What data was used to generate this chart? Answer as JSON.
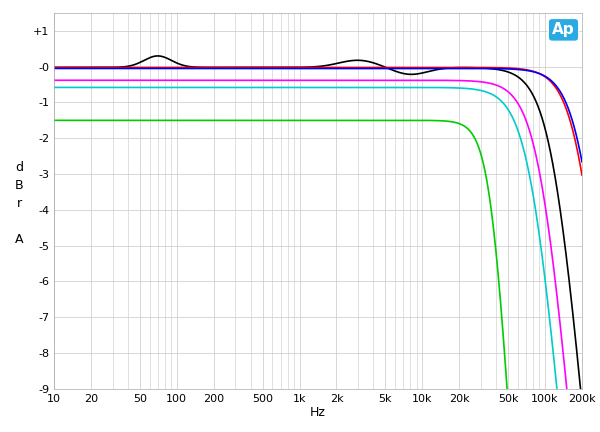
{
  "title": "",
  "xlabel": "Hz",
  "ylabel": "d\nB\nr\n\nA",
  "xlim": [
    10,
    200000
  ],
  "ylim": [
    -9,
    1.5
  ],
  "yticks": [
    1,
    0,
    -1,
    -2,
    -3,
    -4,
    -5,
    -6,
    -7,
    -8,
    -9
  ],
  "ytick_labels": [
    "+1",
    "-0",
    "-1",
    "-2",
    "-3",
    "-4",
    "-5",
    "-6",
    "-7",
    "-8",
    "-9"
  ],
  "background_color": "#ffffff",
  "grid_color": "#c8c8c8",
  "ap_logo_color": "#29aae2",
  "xtick_vals": [
    10,
    20,
    50,
    100,
    200,
    500,
    1000,
    2000,
    5000,
    10000,
    20000,
    50000,
    100000,
    200000
  ],
  "xtick_labels": [
    "10",
    "20",
    "50",
    "100",
    "200",
    "500",
    "1k",
    "2k",
    "5k",
    "10k",
    "20k",
    "50k",
    "100k",
    "200k"
  ],
  "curves": [
    {
      "color": "#000000",
      "label": "black",
      "flat_db": -0.02,
      "f_hi": 120000,
      "order_hi": 2,
      "has_ripple": true
    },
    {
      "color": "#ff0000",
      "label": "red",
      "flat_db": -0.02,
      "f_hi": 200000,
      "order_hi": 2,
      "has_ripple": false
    },
    {
      "color": "#0000ff",
      "label": "blue",
      "flat_db": -0.05,
      "f_hi": 210000,
      "order_hi": 2,
      "has_ripple": false
    },
    {
      "color": "#ff00ff",
      "label": "magenta",
      "flat_db": -0.38,
      "f_hi": 95000,
      "order_hi": 2,
      "has_ripple": false
    },
    {
      "color": "#00cccc",
      "label": "cyan",
      "flat_db": -0.58,
      "f_hi": 80000,
      "order_hi": 2,
      "has_ripple": false
    },
    {
      "color": "#00cc00",
      "label": "green",
      "flat_db": -1.5,
      "f_hi": 38000,
      "order_hi": 3,
      "has_ripple": false
    }
  ]
}
